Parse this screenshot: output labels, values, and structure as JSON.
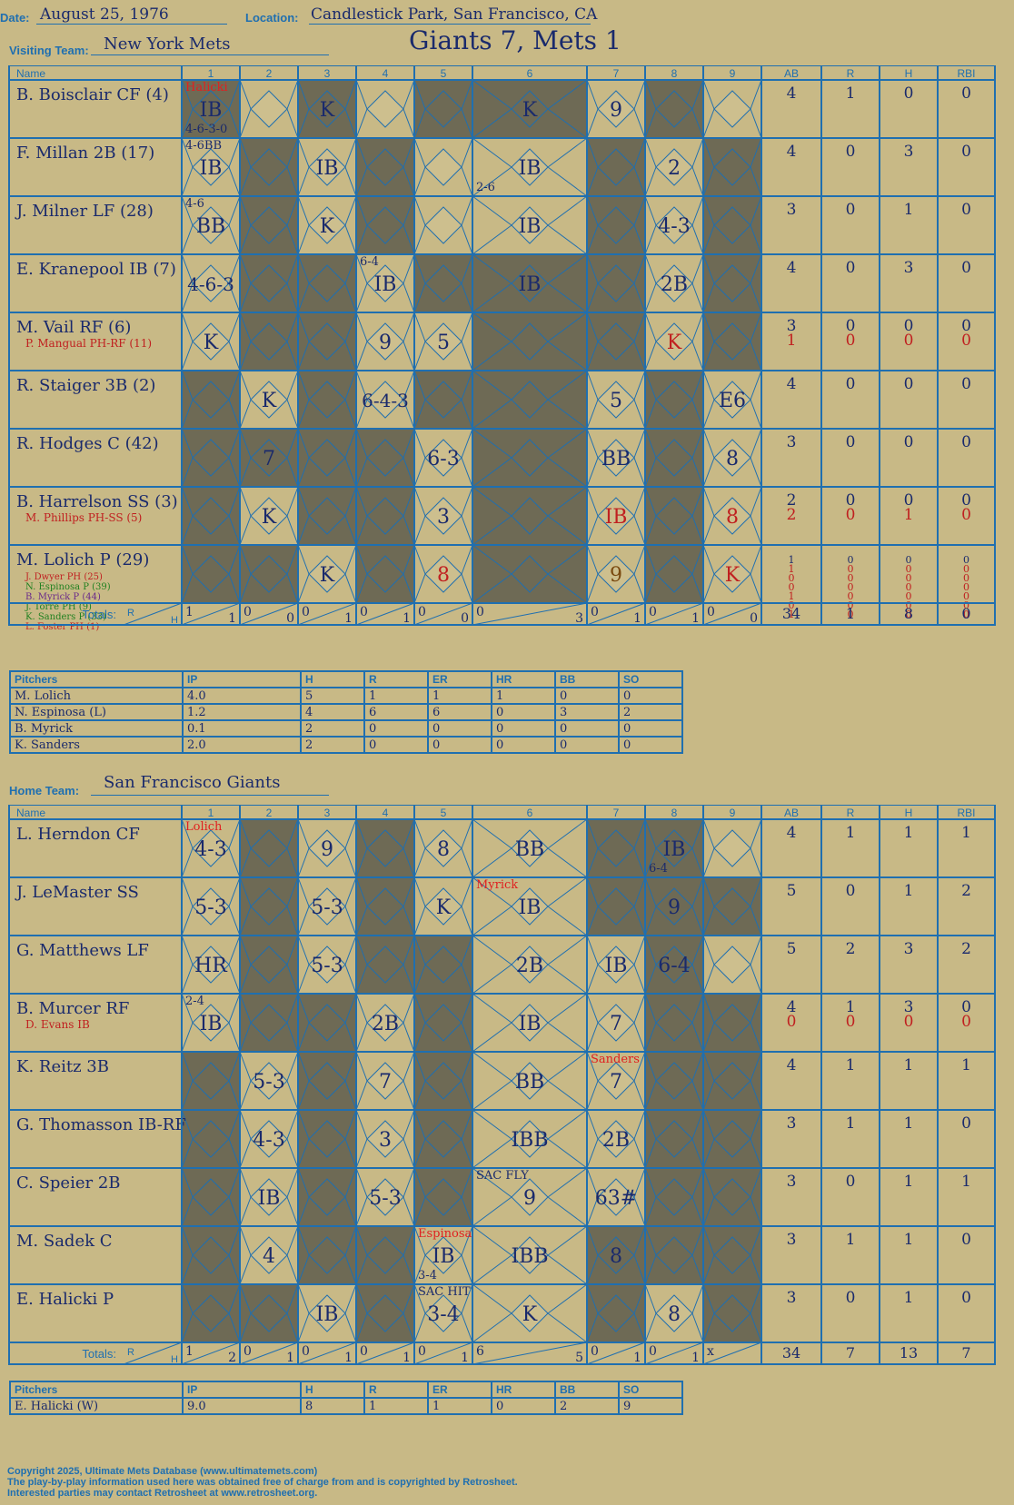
{
  "header": {
    "date_label": "Date:",
    "date": "August 25, 1976",
    "location_label": "Location:",
    "location": "Candlestick Park, San Francisco, CA",
    "visiting_label": "Visiting Team:",
    "visiting_team": "New York Mets",
    "home_label": "Home Team:",
    "home_team": "San Francisco Giants",
    "result": "Giants 7, Mets 1"
  },
  "columns": {
    "name": "Name",
    "innings": [
      "1",
      "2",
      "3",
      "4",
      "5",
      "6",
      "7",
      "8",
      "9"
    ],
    "stats": [
      "AB",
      "R",
      "H",
      "RBI"
    ]
  },
  "visitor": {
    "innings_shaded": [
      [
        1,
        0,
        1,
        0,
        1,
        1,
        0,
        1,
        0
      ],
      [
        0,
        1,
        0,
        1,
        0,
        0,
        1,
        0,
        1
      ],
      [
        0,
        1,
        0,
        1,
        0,
        0,
        1,
        0,
        1
      ],
      [
        0,
        1,
        1,
        0,
        1,
        1,
        1,
        0,
        1
      ],
      [
        0,
        1,
        1,
        0,
        0,
        1,
        1,
        0,
        1
      ],
      [
        1,
        0,
        1,
        0,
        1,
        1,
        0,
        1,
        0
      ],
      [
        1,
        1,
        1,
        1,
        0,
        1,
        0,
        1,
        0
      ],
      [
        1,
        0,
        1,
        1,
        0,
        1,
        0,
        1,
        0
      ],
      [
        1,
        1,
        0,
        1,
        0,
        1,
        0,
        1,
        0
      ]
    ],
    "players": [
      {
        "name": "B. Boisclair CF (4)",
        "subs": [],
        "stats": [
          [
            "4",
            "1",
            "0",
            "0"
          ]
        ],
        "plays": [
          [
            "1",
            "IB",
            "#1a2a6c"
          ],
          [
            "3",
            "K",
            ""
          ],
          [
            "6",
            "K",
            ""
          ],
          [
            "7",
            "9",
            ""
          ]
        ],
        "notes": [
          [
            "1",
            "Halicki",
            "#e02020"
          ],
          [
            "1",
            "4-6-3-0",
            ""
          ]
        ]
      },
      {
        "name": "F. Millan 2B (17)",
        "subs": [],
        "stats": [
          [
            "4",
            "0",
            "3",
            "0"
          ]
        ],
        "plays": [
          [
            "1",
            "IB",
            ""
          ],
          [
            "3",
            "IB",
            ""
          ],
          [
            "6",
            "IB",
            ""
          ],
          [
            "8",
            "2",
            ""
          ]
        ],
        "notes": [
          [
            "1",
            "4-6BB",
            ""
          ],
          [
            "6",
            "2-6",
            ""
          ]
        ]
      },
      {
        "name": "J. Milner LF (28)",
        "subs": [],
        "stats": [
          [
            "3",
            "0",
            "1",
            "0"
          ]
        ],
        "plays": [
          [
            "1",
            "BB",
            ""
          ],
          [
            "3",
            "K",
            ""
          ],
          [
            "6",
            "IB",
            ""
          ],
          [
            "8",
            "4-3",
            ""
          ]
        ],
        "notes": [
          [
            "1",
            "4-6",
            ""
          ]
        ]
      },
      {
        "name": "E. Kranepool IB (7)",
        "subs": [],
        "stats": [
          [
            "4",
            "0",
            "3",
            "0"
          ]
        ],
        "plays": [
          [
            "1",
            "4-6-3",
            ""
          ],
          [
            "4",
            "IB",
            ""
          ],
          [
            "6",
            "IB",
            ""
          ],
          [
            "8",
            "2B",
            ""
          ]
        ],
        "notes": [
          [
            "4",
            "6-4",
            ""
          ]
        ]
      },
      {
        "name": "M. Vail RF (6)",
        "subs": [
          [
            "P. Mangual PH-RF (11)",
            "#c02020"
          ]
        ],
        "stats": [
          [
            "3",
            "0",
            "0",
            "0"
          ],
          [
            "1",
            "0",
            "0",
            "0"
          ]
        ],
        "plays": [
          [
            "1",
            "K",
            ""
          ],
          [
            "4",
            "9",
            ""
          ],
          [
            "5",
            "5",
            ""
          ],
          [
            "8",
            "K",
            "#c02020"
          ]
        ],
        "notes": []
      },
      {
        "name": "R. Staiger 3B (2)",
        "subs": [],
        "stats": [
          [
            "4",
            "0",
            "0",
            "0"
          ]
        ],
        "plays": [
          [
            "2",
            "K",
            ""
          ],
          [
            "4",
            "6-4-3",
            ""
          ],
          [
            "7",
            "5",
            ""
          ],
          [
            "9",
            "E6",
            ""
          ]
        ],
        "notes": []
      },
      {
        "name": "R. Hodges C (42)",
        "subs": [],
        "stats": [
          [
            "3",
            "0",
            "0",
            "0"
          ]
        ],
        "plays": [
          [
            "2",
            "7",
            ""
          ],
          [
            "5",
            "6-3",
            ""
          ],
          [
            "7",
            "BB",
            ""
          ],
          [
            "9",
            "8",
            ""
          ]
        ],
        "notes": []
      },
      {
        "name": "B. Harrelson SS (3)",
        "subs": [
          [
            "M. Phillips PH-SS (5)",
            "#c02020"
          ]
        ],
        "stats": [
          [
            "2",
            "0",
            "0",
            "0"
          ],
          [
            "2",
            "0",
            "1",
            "0"
          ]
        ],
        "plays": [
          [
            "2",
            "K",
            ""
          ],
          [
            "5",
            "3",
            ""
          ],
          [
            "7",
            "IB",
            "#c02020"
          ],
          [
            "9",
            "8",
            "#c02020"
          ]
        ],
        "notes": []
      },
      {
        "name": "M. Lolich P (29)",
        "subs": [
          [
            "J. Dwyer PH (25)",
            "#c02020"
          ],
          [
            "N. Espinosa P (39)",
            "#208020"
          ],
          [
            "B. Myrick P (44)",
            "#6a2a8a"
          ],
          [
            "J. Torre PH (9)",
            "#208020"
          ],
          [
            "K. Sanders P (33)",
            "#208020"
          ],
          [
            "L. Foster PH (1)",
            "#c02020"
          ]
        ],
        "stats": [
          [
            "1",
            "0",
            "0",
            "0"
          ],
          [
            "1",
            "0",
            "0",
            "0"
          ],
          [
            "0",
            "0",
            "0",
            "0"
          ],
          [
            "0",
            "0",
            "0",
            "0"
          ],
          [
            "1",
            "0",
            "0",
            "0"
          ],
          [
            "0",
            "0",
            "0",
            "0"
          ],
          [
            "1",
            "0",
            "0",
            "0"
          ]
        ],
        "plays": [
          [
            "3",
            "K",
            ""
          ],
          [
            "5",
            "8",
            "#c02020"
          ],
          [
            "7",
            "9",
            "#7a4a10"
          ],
          [
            "9",
            "K",
            "#c02020"
          ]
        ],
        "notes": []
      }
    ],
    "totals_label": "Totals:",
    "totals_rh": [
      [
        "1",
        "1"
      ],
      [
        "0",
        "0"
      ],
      [
        "0",
        "1"
      ],
      [
        "0",
        "1"
      ],
      [
        "0",
        "0"
      ],
      [
        "0",
        "3"
      ],
      [
        "0",
        "1"
      ],
      [
        "0",
        "1"
      ],
      [
        "0",
        "0"
      ]
    ],
    "totals_stats": [
      "34",
      "1",
      "8",
      "0"
    ]
  },
  "visitor_pitchers": {
    "headers": [
      "Pitchers",
      "IP",
      "H",
      "R",
      "ER",
      "HR",
      "BB",
      "SO"
    ],
    "rows": [
      [
        "M. Lolich",
        "4.0",
        "5",
        "1",
        "1",
        "1",
        "0",
        "0"
      ],
      [
        "N. Espinosa (L)",
        "1.2",
        "4",
        "6",
        "6",
        "0",
        "3",
        "2"
      ],
      [
        "B. Myrick",
        "0.1",
        "2",
        "0",
        "0",
        "0",
        "0",
        "0"
      ],
      [
        "K. Sanders",
        "2.0",
        "2",
        "0",
        "0",
        "0",
        "0",
        "0"
      ]
    ]
  },
  "home": {
    "innings_shaded": [
      [
        0,
        1,
        0,
        1,
        0,
        0,
        1,
        1,
        0
      ],
      [
        0,
        1,
        0,
        1,
        0,
        0,
        1,
        1,
        1
      ],
      [
        0,
        1,
        0,
        1,
        1,
        0,
        0,
        1,
        0
      ],
      [
        0,
        1,
        1,
        0,
        1,
        0,
        0,
        1,
        1
      ],
      [
        1,
        0,
        1,
        0,
        1,
        0,
        0,
        1,
        1
      ],
      [
        1,
        0,
        1,
        0,
        1,
        0,
        0,
        1,
        1
      ],
      [
        1,
        0,
        1,
        0,
        1,
        0,
        0,
        1,
        1
      ],
      [
        1,
        0,
        1,
        1,
        0,
        0,
        1,
        1,
        1
      ],
      [
        1,
        1,
        0,
        1,
        0,
        0,
        1,
        0,
        1
      ]
    ],
    "players": [
      {
        "name": "L. Herndon CF",
        "subs": [],
        "stats": [
          [
            "4",
            "1",
            "1",
            "1"
          ]
        ],
        "plays": [
          [
            "1",
            "4-3",
            ""
          ],
          [
            "3",
            "9",
            ""
          ],
          [
            "5",
            "8",
            ""
          ],
          [
            "6",
            "BB",
            ""
          ],
          [
            "8",
            "IB",
            ""
          ]
        ],
        "notes": [
          [
            "1",
            "Lolich",
            "#e02020"
          ],
          [
            "8",
            "6-4",
            ""
          ]
        ]
      },
      {
        "name": "J. LeMaster SS",
        "subs": [],
        "stats": [
          [
            "5",
            "0",
            "1",
            "2"
          ]
        ],
        "plays": [
          [
            "1",
            "5-3",
            ""
          ],
          [
            "3",
            "5-3",
            ""
          ],
          [
            "5",
            "K",
            ""
          ],
          [
            "6",
            "IB",
            ""
          ],
          [
            "8",
            "9",
            ""
          ]
        ],
        "notes": [
          [
            "6",
            "Myrick",
            "#e02020"
          ]
        ]
      },
      {
        "name": "G. Matthews LF",
        "subs": [],
        "stats": [
          [
            "5",
            "2",
            "3",
            "2"
          ]
        ],
        "plays": [
          [
            "1",
            "HR",
            ""
          ],
          [
            "3",
            "5-3",
            ""
          ],
          [
            "6",
            "2B",
            ""
          ],
          [
            "7",
            "IB",
            ""
          ],
          [
            "8",
            "6-4",
            ""
          ]
        ],
        "notes": []
      },
      {
        "name": "B. Murcer RF",
        "subs": [
          [
            "D. Evans IB",
            "#c02020"
          ]
        ],
        "stats": [
          [
            "4",
            "1",
            "3",
            "0"
          ],
          [
            "0",
            "0",
            "0",
            "0"
          ]
        ],
        "plays": [
          [
            "1",
            "IB",
            ""
          ],
          [
            "4",
            "2B",
            ""
          ],
          [
            "6",
            "IB",
            ""
          ],
          [
            "7",
            "7",
            ""
          ]
        ],
        "notes": [
          [
            "1",
            "2-4",
            ""
          ]
        ]
      },
      {
        "name": "K. Reitz 3B",
        "subs": [],
        "stats": [
          [
            "4",
            "1",
            "1",
            "1"
          ]
        ],
        "plays": [
          [
            "2",
            "5-3",
            ""
          ],
          [
            "4",
            "7",
            ""
          ],
          [
            "6",
            "BB",
            ""
          ],
          [
            "7",
            "7",
            ""
          ]
        ],
        "notes": [
          [
            "7",
            "Sanders",
            "#e02020"
          ]
        ]
      },
      {
        "name": "G. Thomasson IB-RF",
        "subs": [],
        "stats": [
          [
            "3",
            "1",
            "1",
            "0"
          ]
        ],
        "plays": [
          [
            "2",
            "4-3",
            ""
          ],
          [
            "4",
            "3",
            ""
          ],
          [
            "6",
            "IBB",
            ""
          ],
          [
            "7",
            "2B",
            ""
          ]
        ],
        "notes": []
      },
      {
        "name": "C. Speier 2B",
        "subs": [],
        "stats": [
          [
            "3",
            "0",
            "1",
            "1"
          ]
        ],
        "plays": [
          [
            "2",
            "IB",
            ""
          ],
          [
            "4",
            "5-3",
            ""
          ],
          [
            "6",
            "9",
            ""
          ],
          [
            "7",
            "63#",
            ""
          ]
        ],
        "notes": [
          [
            "6",
            "SAC FLY",
            ""
          ]
        ]
      },
      {
        "name": "M. Sadek C",
        "subs": [],
        "stats": [
          [
            "3",
            "1",
            "1",
            "0"
          ]
        ],
        "plays": [
          [
            "2",
            "4",
            ""
          ],
          [
            "5",
            "IB",
            ""
          ],
          [
            "6",
            "IBB",
            ""
          ],
          [
            "7",
            "8",
            ""
          ]
        ],
        "notes": [
          [
            "5",
            "Espinosa",
            "#e02020"
          ],
          [
            "5",
            "3-4",
            ""
          ]
        ]
      },
      {
        "name": "E. Halicki P",
        "subs": [],
        "stats": [
          [
            "3",
            "0",
            "1",
            "0"
          ]
        ],
        "plays": [
          [
            "3",
            "IB",
            ""
          ],
          [
            "5",
            "3-4",
            ""
          ],
          [
            "6",
            "K",
            ""
          ],
          [
            "8",
            "8",
            ""
          ]
        ],
        "notes": [
          [
            "5",
            "SAC HIT",
            ""
          ]
        ]
      }
    ],
    "totals_label": "Totals:",
    "totals_rh": [
      [
        "1",
        "2"
      ],
      [
        "0",
        "1"
      ],
      [
        "0",
        "1"
      ],
      [
        "0",
        "1"
      ],
      [
        "0",
        "1"
      ],
      [
        "6",
        "5"
      ],
      [
        "0",
        "1"
      ],
      [
        "0",
        "1"
      ],
      [
        "x",
        ""
      ]
    ],
    "totals_stats": [
      "34",
      "7",
      "13",
      "7"
    ]
  },
  "home_pitchers": {
    "headers": [
      "Pitchers",
      "IP",
      "H",
      "R",
      "ER",
      "HR",
      "BB",
      "SO"
    ],
    "rows": [
      [
        "E. Halicki (W)",
        "9.0",
        "8",
        "1",
        "1",
        "0",
        "2",
        "9"
      ]
    ]
  },
  "footer": [
    "Copyright 2025, Ultimate Mets Database (www.ultimatemets.com)",
    "The play-by-play information used here was obtained free of charge from and is copyrighted by Retrosheet.",
    "Interested parties may contact Retrosheet at www.retrosheet.org."
  ],
  "colors": {
    "paper": "#c8b986",
    "grid": "#1f6fb0",
    "shade": "#6e6a55",
    "ink": "#1a2a6c",
    "red": "#c02020"
  }
}
